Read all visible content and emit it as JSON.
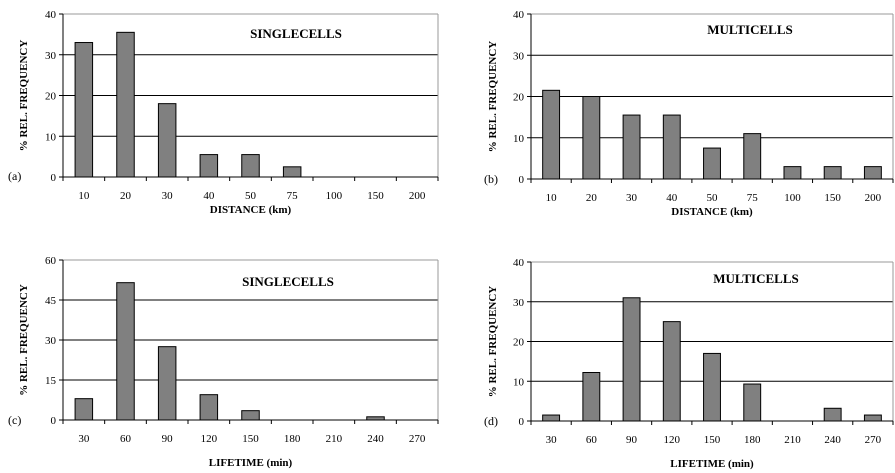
{
  "chart_data": [
    {
      "type": "bar",
      "panel_label": "(a)",
      "title": "SINGLECELLS",
      "xlabel": "DISTANCE (km)",
      "ylabel": "% REL. FREQUENCY",
      "categories": [
        "10",
        "20",
        "30",
        "40",
        "50",
        "75",
        "100",
        "150",
        "200"
      ],
      "values": [
        33,
        35.5,
        18,
        5.5,
        5.5,
        2.5,
        0,
        0,
        0
      ],
      "ylim": [
        0,
        40
      ],
      "yticks": [
        0,
        10,
        20,
        30,
        40
      ],
      "grid": true,
      "bar_color": "#808080"
    },
    {
      "type": "bar",
      "panel_label": "(b)",
      "title": "MULTICELLS",
      "xlabel": "DISTANCE (km)",
      "ylabel": "% REL. FREQUENCY",
      "categories": [
        "10",
        "20",
        "30",
        "40",
        "50",
        "75",
        "100",
        "150",
        "200"
      ],
      "values": [
        21.5,
        20,
        15.5,
        15.5,
        7.5,
        11,
        3,
        3,
        3
      ],
      "ylim": [
        0,
        40
      ],
      "yticks": [
        0,
        10,
        20,
        30,
        40
      ],
      "grid": true,
      "bar_color": "#808080"
    },
    {
      "type": "bar",
      "panel_label": "(c)",
      "title": "SINGLECELLS",
      "xlabel": "LIFETIME (min)",
      "ylabel": "% REL. FREQUENCY",
      "categories": [
        "30",
        "60",
        "90",
        "120",
        "150",
        "180",
        "210",
        "240",
        "270"
      ],
      "values": [
        8,
        51.5,
        27.5,
        9.5,
        3.5,
        0,
        0,
        1.2,
        0
      ],
      "ylim": [
        0,
        60
      ],
      "yticks": [
        0,
        15,
        30,
        45,
        60
      ],
      "grid": true,
      "bar_color": "#808080"
    },
    {
      "type": "bar",
      "panel_label": "(d)",
      "title": "MULTICELLS",
      "xlabel": "LIFETIME (min)",
      "ylabel": "% REL. FREQUENCY",
      "categories": [
        "30",
        "60",
        "90",
        "120",
        "150",
        "180",
        "210",
        "240",
        "270"
      ],
      "values": [
        1.5,
        12.2,
        31,
        25,
        17,
        9.3,
        0,
        3.2,
        1.5
      ],
      "ylim": [
        0,
        40
      ],
      "yticks": [
        0,
        10,
        20,
        30,
        40
      ],
      "grid": true,
      "bar_color": "#808080"
    }
  ]
}
